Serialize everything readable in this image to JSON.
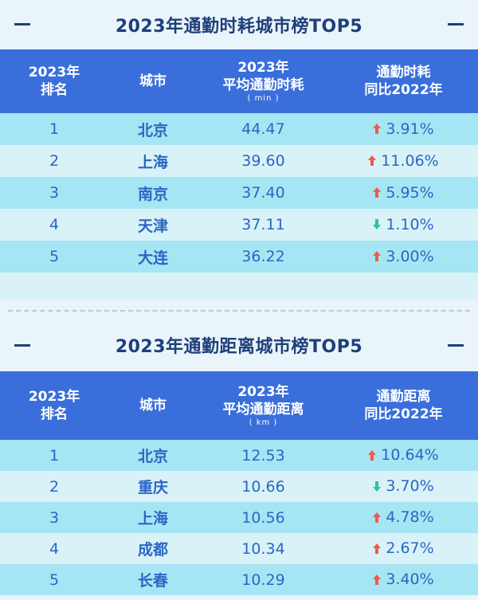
{
  "tables": [
    {
      "title": "2023年通勤时耗城市榜TOP5",
      "headers": {
        "rank": "2023年\n排名",
        "city": "城市",
        "value": "2023年\n平均通勤时耗",
        "unit": "( min )",
        "change": "通勤时耗\n同比2022年"
      },
      "rows": [
        {
          "rank": "1",
          "city": "北京",
          "value": "44.47",
          "dir": "up",
          "change": "3.91%"
        },
        {
          "rank": "2",
          "city": "上海",
          "value": "39.60",
          "dir": "up",
          "change": "11.06%"
        },
        {
          "rank": "3",
          "city": "南京",
          "value": "37.40",
          "dir": "up",
          "change": "5.95%"
        },
        {
          "rank": "4",
          "city": "天津",
          "value": "37.11",
          "dir": "down",
          "change": "1.10%"
        },
        {
          "rank": "5",
          "city": "大连",
          "value": "36.22",
          "dir": "up",
          "change": "3.00%"
        }
      ]
    },
    {
      "title": "2023年通勤距离城市榜TOP5",
      "headers": {
        "rank": "2023年\n排名",
        "city": "城市",
        "value": "2023年\n平均通勤距离",
        "unit": "( km )",
        "change": "通勤距离\n同比2022年"
      },
      "rows": [
        {
          "rank": "1",
          "city": "北京",
          "value": "12.53",
          "dir": "up",
          "change": "10.64%"
        },
        {
          "rank": "2",
          "city": "重庆",
          "value": "10.66",
          "dir": "down",
          "change": "3.70%"
        },
        {
          "rank": "3",
          "city": "上海",
          "value": "10.56",
          "dir": "up",
          "change": "4.78%"
        },
        {
          "rank": "4",
          "city": "成都",
          "value": "10.34",
          "dir": "up",
          "change": "2.67%"
        },
        {
          "rank": "5",
          "city": "长春",
          "value": "10.29",
          "dir": "up",
          "change": "3.40%"
        }
      ]
    }
  ],
  "colors": {
    "title": "#1f3f7a",
    "header_bg": "#3a6fdb",
    "row_dark": "#a6e6f4",
    "row_light": "#d8f2f8",
    "text": "#2b66c4",
    "arrow_up": "#f05a47",
    "arrow_down": "#2cc49a"
  }
}
